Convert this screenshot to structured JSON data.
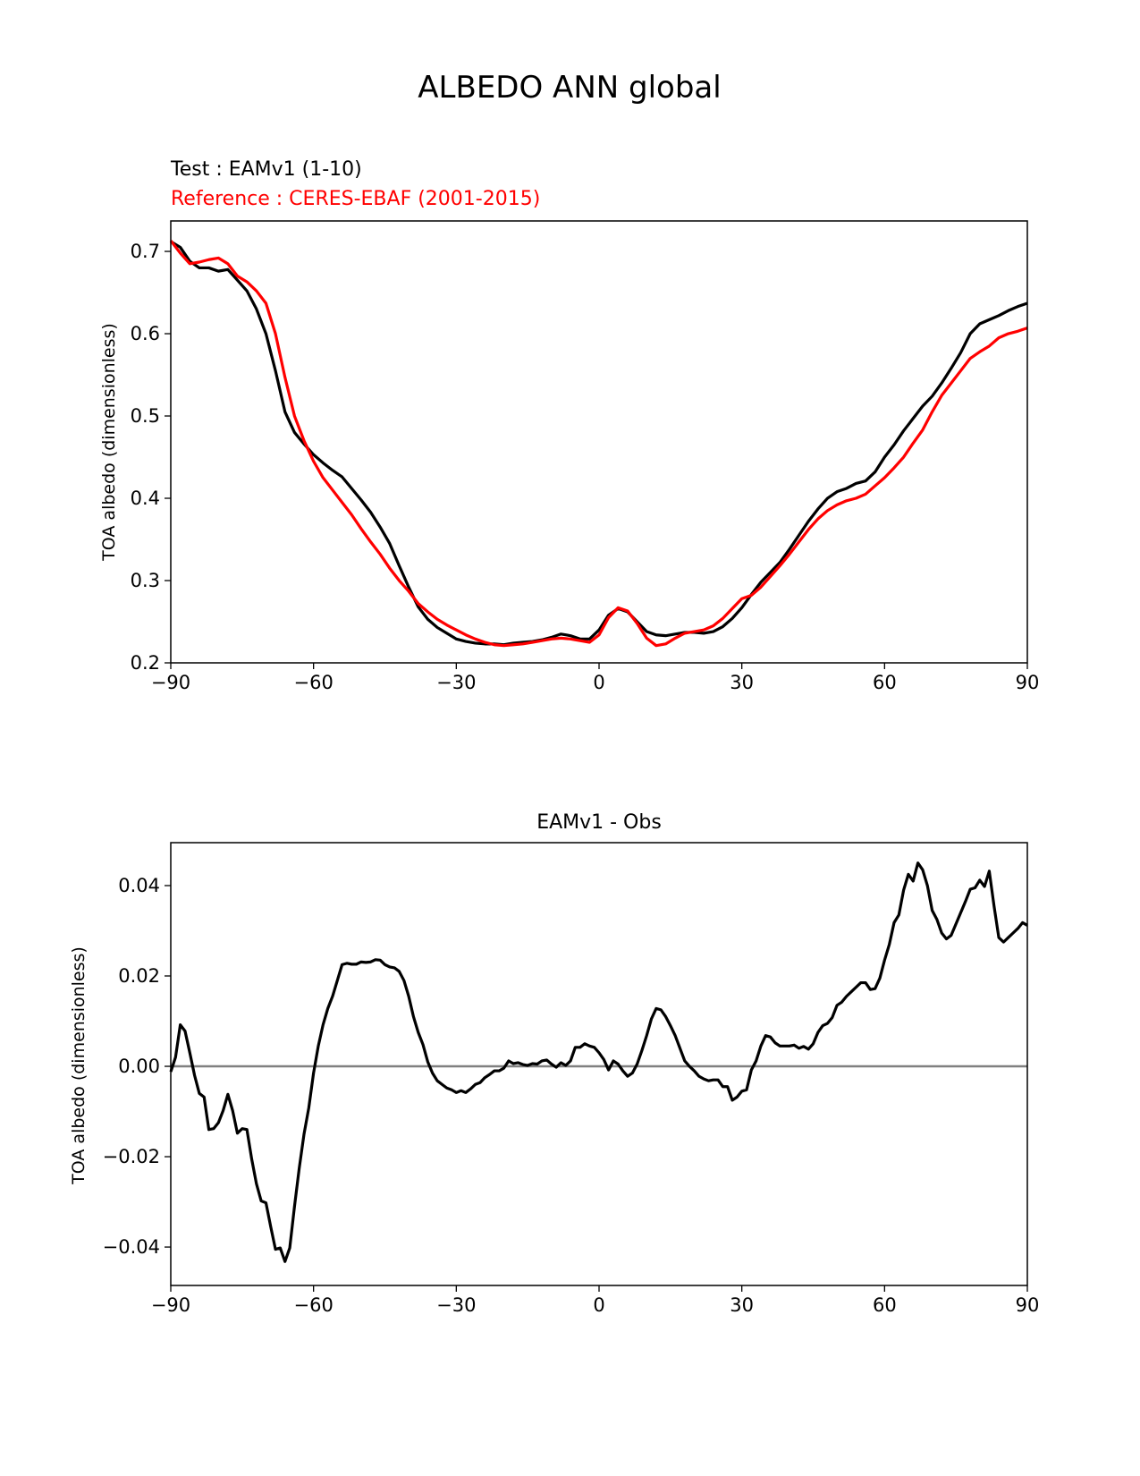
{
  "figure": {
    "suptitle": "ALBEDO ANN global"
  },
  "chart_data": [
    {
      "type": "line",
      "test_label": "Test : EAMv1 (1-10)",
      "reference_label": "Reference : CERES-EBAF (2001-2015)",
      "xlabel": "",
      "ylabel": "TOA albedo (dimensionless)",
      "xlim": [
        -90,
        90
      ],
      "ylim": [
        0.2,
        0.737
      ],
      "xticks": [
        -90,
        -60,
        -30,
        0,
        30,
        60,
        90
      ],
      "xtick_labels": [
        "−90",
        "−60",
        "−30",
        "0",
        "30",
        "60",
        "90"
      ],
      "yticks": [
        0.2,
        0.3,
        0.4,
        0.5,
        0.6,
        0.7
      ],
      "ytick_labels": [
        "0.2",
        "0.3",
        "0.4",
        "0.5",
        "0.6",
        "0.7"
      ],
      "grid": false,
      "series": [
        {
          "name": "EAMv1 (1-10)",
          "color": "#000000",
          "x": [
            -90,
            -88,
            -86,
            -84,
            -82,
            -80,
            -78,
            -76,
            -74,
            -72,
            -70,
            -68,
            -66,
            -64,
            -62,
            -60,
            -58,
            -56,
            -54,
            -52,
            -50,
            -48,
            -46,
            -44,
            -42,
            -40,
            -38,
            -36,
            -34,
            -32,
            -30,
            -28,
            -26,
            -24,
            -22,
            -20,
            -18,
            -16,
            -14,
            -12,
            -10,
            -8,
            -6,
            -4,
            -2,
            0,
            2,
            4,
            6,
            8,
            10,
            12,
            14,
            16,
            18,
            20,
            22,
            24,
            26,
            28,
            30,
            32,
            34,
            36,
            38,
            40,
            42,
            44,
            46,
            48,
            50,
            52,
            54,
            56,
            58,
            60,
            62,
            64,
            66,
            68,
            70,
            72,
            74,
            76,
            78,
            80,
            82,
            84,
            86,
            88,
            90
          ],
          "y": [
            0.712,
            0.705,
            0.688,
            0.68,
            0.68,
            0.676,
            0.678,
            0.665,
            0.652,
            0.63,
            0.6,
            0.555,
            0.505,
            0.48,
            0.466,
            0.453,
            0.443,
            0.434,
            0.426,
            0.412,
            0.398,
            0.383,
            0.365,
            0.345,
            0.318,
            0.292,
            0.268,
            0.253,
            0.243,
            0.236,
            0.229,
            0.226,
            0.224,
            0.223,
            0.223,
            0.222,
            0.224,
            0.225,
            0.226,
            0.228,
            0.231,
            0.235,
            0.233,
            0.229,
            0.229,
            0.24,
            0.258,
            0.266,
            0.262,
            0.25,
            0.238,
            0.234,
            0.233,
            0.235,
            0.237,
            0.237,
            0.236,
            0.238,
            0.244,
            0.254,
            0.267,
            0.283,
            0.298,
            0.31,
            0.322,
            0.338,
            0.355,
            0.372,
            0.387,
            0.4,
            0.408,
            0.412,
            0.418,
            0.421,
            0.432,
            0.45,
            0.465,
            0.482,
            0.497,
            0.512,
            0.524,
            0.54,
            0.558,
            0.577,
            0.6,
            0.612,
            0.617,
            0.622,
            0.628,
            0.633,
            0.637
          ]
        },
        {
          "name": "CERES-EBAF (2001-2015)",
          "color": "#ff0000",
          "x": [
            -90,
            -88,
            -86,
            -84,
            -82,
            -80,
            -78,
            -76,
            -74,
            -72,
            -70,
            -68,
            -66,
            -64,
            -62,
            -60,
            -58,
            -56,
            -54,
            -52,
            -50,
            -48,
            -46,
            -44,
            -42,
            -40,
            -38,
            -36,
            -34,
            -32,
            -30,
            -28,
            -26,
            -24,
            -22,
            -20,
            -18,
            -16,
            -14,
            -12,
            -10,
            -8,
            -6,
            -4,
            -2,
            0,
            2,
            4,
            6,
            8,
            10,
            12,
            14,
            16,
            18,
            20,
            22,
            24,
            26,
            28,
            30,
            32,
            34,
            36,
            38,
            40,
            42,
            44,
            46,
            48,
            50,
            52,
            54,
            56,
            58,
            60,
            62,
            64,
            66,
            68,
            70,
            72,
            74,
            76,
            78,
            80,
            82,
            84,
            86,
            88,
            90
          ],
          "y": [
            0.713,
            0.698,
            0.685,
            0.687,
            0.69,
            0.692,
            0.685,
            0.67,
            0.663,
            0.652,
            0.637,
            0.6,
            0.547,
            0.5,
            0.47,
            0.445,
            0.425,
            0.41,
            0.395,
            0.38,
            0.363,
            0.347,
            0.332,
            0.315,
            0.3,
            0.287,
            0.272,
            0.262,
            0.253,
            0.246,
            0.24,
            0.234,
            0.229,
            0.225,
            0.222,
            0.221,
            0.222,
            0.223,
            0.225,
            0.227,
            0.229,
            0.23,
            0.229,
            0.227,
            0.225,
            0.234,
            0.255,
            0.267,
            0.263,
            0.248,
            0.23,
            0.221,
            0.223,
            0.23,
            0.236,
            0.238,
            0.24,
            0.245,
            0.254,
            0.266,
            0.278,
            0.282,
            0.292,
            0.305,
            0.318,
            0.332,
            0.347,
            0.362,
            0.375,
            0.385,
            0.392,
            0.397,
            0.4,
            0.405,
            0.415,
            0.425,
            0.437,
            0.45,
            0.467,
            0.483,
            0.505,
            0.525,
            0.54,
            0.555,
            0.57,
            0.578,
            0.585,
            0.595,
            0.6,
            0.603,
            0.607
          ]
        }
      ]
    },
    {
      "type": "line",
      "title": "EAMv1 - Obs",
      "xlabel": "",
      "ylabel": "TOA albedo (dimensionless)",
      "xlim": [
        -90,
        90
      ],
      "ylim": [
        -0.0485,
        0.0495
      ],
      "xticks": [
        -90,
        -60,
        -30,
        0,
        30,
        60,
        90
      ],
      "xtick_labels": [
        "−90",
        "−60",
        "−30",
        "0",
        "30",
        "60",
        "90"
      ],
      "yticks": [
        -0.04,
        -0.02,
        0.0,
        0.02,
        0.04
      ],
      "ytick_labels": [
        "−0.04",
        "−0.02",
        "0.00",
        "0.02",
        "0.04"
      ],
      "zero_line_color": "#808080",
      "grid": false,
      "series": [
        {
          "name": "",
          "color": "#000000",
          "x": [
            -90,
            -89,
            -88,
            -87,
            -86,
            -85,
            -84,
            -83,
            -82,
            -81,
            -80,
            -79,
            -78,
            -77,
            -76,
            -75,
            -74,
            -73,
            -72,
            -71,
            -70,
            -69,
            -68,
            -67,
            -66,
            -65,
            -64,
            -63,
            -62,
            -61,
            -60,
            -59,
            -58,
            -57,
            -56,
            -55,
            -54,
            -53,
            -52,
            -51,
            -50,
            -49,
            -48,
            -47,
            -46,
            -45,
            -44,
            -43,
            -42,
            -41,
            -40,
            -39,
            -38,
            -37,
            -36,
            -35,
            -34,
            -33,
            -32,
            -31,
            -30,
            -29,
            -28,
            -27,
            -26,
            -25,
            -24,
            -23,
            -22,
            -21,
            -20,
            -19,
            -18,
            -17,
            -16,
            -15,
            -14,
            -13,
            -12,
            -11,
            -10,
            -9,
            -8,
            -7,
            -6,
            -5,
            -4,
            -3,
            -2,
            -1,
            0,
            1,
            2,
            3,
            4,
            5,
            6,
            7,
            8,
            9,
            10,
            11,
            12,
            13,
            14,
            15,
            16,
            17,
            18,
            19,
            20,
            21,
            22,
            23,
            24,
            25,
            26,
            27,
            28,
            29,
            30,
            31,
            32,
            33,
            34,
            35,
            36,
            37,
            38,
            39,
            40,
            41,
            42,
            43,
            44,
            45,
            46,
            47,
            48,
            49,
            50,
            51,
            52,
            53,
            54,
            55,
            56,
            57,
            58,
            59,
            60,
            61,
            62,
            63,
            64,
            65,
            66,
            67,
            68,
            69,
            70,
            71,
            72,
            73,
            74,
            75,
            76,
            77,
            78,
            79,
            80,
            81,
            82,
            83,
            84,
            85,
            86,
            87,
            88,
            89,
            90
          ],
          "y": [
            -0.0012,
            0.002,
            0.0092,
            0.0078,
            0.003,
            -0.002,
            -0.006,
            -0.0068,
            -0.014,
            -0.0138,
            -0.0125,
            -0.0098,
            -0.0062,
            -0.0098,
            -0.0148,
            -0.0138,
            -0.014,
            -0.0205,
            -0.026,
            -0.0298,
            -0.0302,
            -0.0355,
            -0.0405,
            -0.0402,
            -0.0432,
            -0.0402,
            -0.031,
            -0.0225,
            -0.015,
            -0.0092,
            -0.0015,
            0.0045,
            0.0092,
            0.0128,
            0.0155,
            0.019,
            0.0225,
            0.0228,
            0.0226,
            0.0226,
            0.0231,
            0.023,
            0.0231,
            0.0236,
            0.0235,
            0.0225,
            0.022,
            0.0218,
            0.021,
            0.019,
            0.0155,
            0.011,
            0.0075,
            0.0048,
            0.001,
            -0.0015,
            -0.0032,
            -0.004,
            -0.0048,
            -0.0052,
            -0.0058,
            -0.0054,
            -0.0058,
            -0.005,
            -0.004,
            -0.0036,
            -0.0025,
            -0.0018,
            -0.001,
            -0.001,
            -0.0004,
            0.0012,
            0.0006,
            0.0008,
            0.0004,
            0.0002,
            0.0006,
            0.0005,
            0.0012,
            0.0014,
            0.0005,
            -0.0002,
            0.0008,
            0.0002,
            0.0012,
            0.0042,
            0.0042,
            0.005,
            0.0045,
            0.0042,
            0.003,
            0.0015,
            -0.0008,
            0.0012,
            0.0005,
            -0.001,
            -0.0022,
            -0.0015,
            0.0005,
            0.0035,
            0.0068,
            0.0105,
            0.0128,
            0.0125,
            0.011,
            0.009,
            0.0068,
            0.004,
            0.0012,
            0.0,
            -0.001,
            -0.0022,
            -0.0028,
            -0.0032,
            -0.003,
            -0.003,
            -0.0045,
            -0.0045,
            -0.0075,
            -0.0068,
            -0.0055,
            -0.0052,
            -0.0008,
            0.0012,
            0.0045,
            0.0068,
            0.0065,
            0.0052,
            0.0045,
            0.0045,
            0.0045,
            0.0047,
            0.004,
            0.0044,
            0.0038,
            0.005,
            0.0075,
            0.009,
            0.0095,
            0.0108,
            0.0135,
            0.0142,
            0.0155,
            0.0165,
            0.0175,
            0.0185,
            0.0185,
            0.017,
            0.0172,
            0.0195,
            0.0235,
            0.027,
            0.0318,
            0.0335,
            0.039,
            0.0425,
            0.041,
            0.045,
            0.0435,
            0.04,
            0.0345,
            0.0325,
            0.0295,
            0.0282,
            0.029,
            0.0315,
            0.034,
            0.0365,
            0.0392,
            0.0395,
            0.0412,
            0.0398,
            0.0432,
            0.0355,
            0.0285,
            0.0275,
            0.0285,
            0.0295,
            0.0305,
            0.0318,
            0.0312
          ]
        }
      ]
    }
  ]
}
